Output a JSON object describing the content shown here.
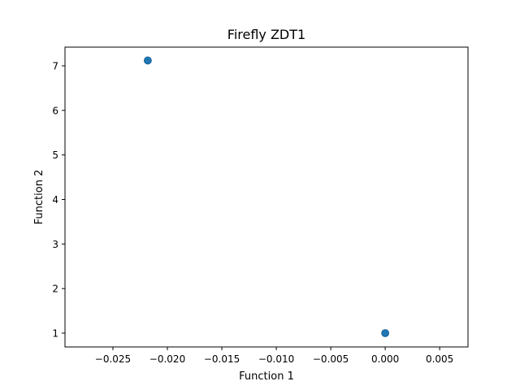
{
  "chart_data": {
    "type": "scatter",
    "title": "Firefly ZDT1",
    "xlabel": "Function 1",
    "ylabel": "Function 2",
    "xlim": [
      -0.0294,
      0.0076
    ],
    "ylim": [
      0.69,
      7.42
    ],
    "x_ticks": [
      -0.025,
      -0.02,
      -0.015,
      -0.01,
      -0.005,
      0.0,
      0.005
    ],
    "x_tick_labels": [
      "−0.025",
      "−0.020",
      "−0.015",
      "−0.010",
      "−0.005",
      "0.000",
      "0.005"
    ],
    "y_ticks": [
      1,
      2,
      3,
      4,
      5,
      6,
      7
    ],
    "y_tick_labels": [
      "1",
      "2",
      "3",
      "4",
      "5",
      "6",
      "7"
    ],
    "grid": false,
    "series": [
      {
        "color": "#1f77b4",
        "points": [
          {
            "x": -0.0218,
            "y": 7.12
          },
          {
            "x": 0.0,
            "y": 1.0
          }
        ]
      }
    ]
  }
}
